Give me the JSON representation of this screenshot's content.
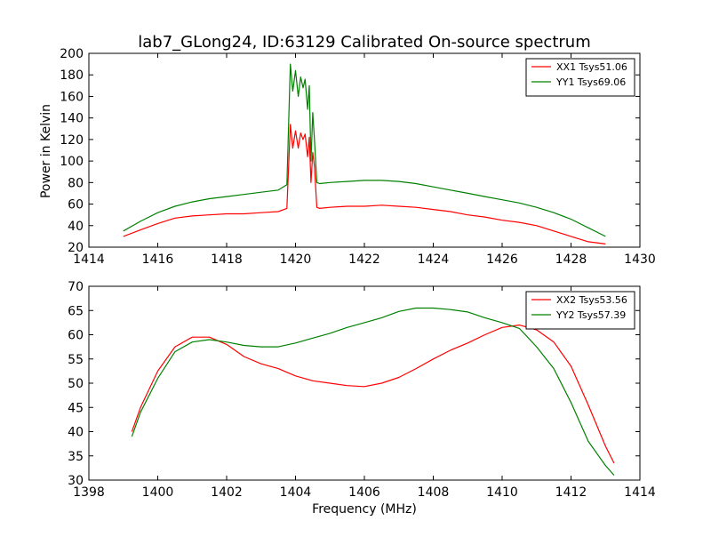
{
  "figure": {
    "title": "lab7_GLong24, ID:63129 Calibrated On-source spectrum",
    "ylabel": "Power in Kelvin",
    "xlabel": "Frequency (MHz)"
  },
  "chart_data": [
    {
      "type": "line",
      "title": "lab7_GLong24, ID:63129 Calibrated On-source spectrum",
      "xlabel": "",
      "ylabel": "Power in Kelvin",
      "xlim": [
        1414,
        1430
      ],
      "ylim": [
        20,
        200
      ],
      "xticks": [
        1414,
        1416,
        1418,
        1420,
        1422,
        1424,
        1426,
        1428,
        1430
      ],
      "yticks": [
        20,
        40,
        60,
        80,
        100,
        120,
        140,
        160,
        180,
        200
      ],
      "legend": "top-right",
      "grid": false,
      "series": [
        {
          "name": "XX1 Tsys51.06",
          "color": "#ff0000",
          "x": [
            1415.0,
            1415.5,
            1416.0,
            1416.5,
            1417.0,
            1417.5,
            1418.0,
            1418.5,
            1419.0,
            1419.5,
            1419.75,
            1419.85,
            1419.92,
            1420.0,
            1420.08,
            1420.15,
            1420.22,
            1420.28,
            1420.35,
            1420.4,
            1420.45,
            1420.5,
            1420.55,
            1420.62,
            1420.7,
            1421.0,
            1421.5,
            1422.0,
            1422.5,
            1423.0,
            1423.5,
            1424.0,
            1424.5,
            1425.0,
            1425.5,
            1426.0,
            1426.5,
            1427.0,
            1427.5,
            1428.0,
            1428.5,
            1429.0
          ],
          "y": [
            30,
            36,
            42,
            47,
            49,
            50,
            51,
            51,
            52,
            53,
            56,
            134,
            112,
            128,
            112,
            126,
            120,
            125,
            104,
            122,
            80,
            108,
            95,
            57,
            56,
            57,
            58,
            58,
            59,
            58,
            57,
            55,
            53,
            50,
            48,
            45,
            43,
            40,
            35,
            30,
            25,
            23
          ]
        },
        {
          "name": "YY1 Tsys69.06",
          "color": "#008000",
          "x": [
            1415.0,
            1415.5,
            1416.0,
            1416.5,
            1417.0,
            1417.5,
            1418.0,
            1418.5,
            1419.0,
            1419.5,
            1419.75,
            1419.85,
            1419.92,
            1420.0,
            1420.08,
            1420.15,
            1420.22,
            1420.28,
            1420.35,
            1420.4,
            1420.45,
            1420.5,
            1420.55,
            1420.62,
            1420.7,
            1421.0,
            1421.5,
            1422.0,
            1422.5,
            1423.0,
            1423.5,
            1424.0,
            1424.5,
            1425.0,
            1425.5,
            1426.0,
            1426.5,
            1427.0,
            1427.5,
            1428.0,
            1428.5,
            1429.0
          ],
          "y": [
            35,
            44,
            52,
            58,
            62,
            65,
            67,
            69,
            71,
            73,
            78,
            190,
            165,
            184,
            160,
            178,
            168,
            176,
            148,
            170,
            100,
            145,
            120,
            80,
            79,
            80,
            81,
            82,
            82,
            81,
            79,
            76,
            73,
            70,
            67,
            64,
            61,
            57,
            52,
            46,
            38,
            30
          ]
        }
      ]
    },
    {
      "type": "line",
      "title": "",
      "xlabel": "Frequency (MHz)",
      "ylabel": "",
      "xlim": [
        1398,
        1414
      ],
      "ylim": [
        30,
        70
      ],
      "xticks": [
        1398,
        1400,
        1402,
        1404,
        1406,
        1408,
        1410,
        1412,
        1414
      ],
      "yticks": [
        30,
        35,
        40,
        45,
        50,
        55,
        60,
        65,
        70
      ],
      "legend": "top-right",
      "grid": false,
      "series": [
        {
          "name": "XX2 Tsys53.56",
          "color": "#ff0000",
          "x": [
            1399.25,
            1399.5,
            1400.0,
            1400.5,
            1401.0,
            1401.5,
            1402.0,
            1402.5,
            1403.0,
            1403.5,
            1404.0,
            1404.5,
            1405.0,
            1405.5,
            1406.0,
            1406.5,
            1407.0,
            1407.5,
            1408.0,
            1408.5,
            1409.0,
            1409.5,
            1410.0,
            1410.5,
            1411.0,
            1411.5,
            1412.0,
            1412.5,
            1413.0,
            1413.25
          ],
          "y": [
            40,
            45,
            52.5,
            57.5,
            59.5,
            59.5,
            58,
            55.5,
            54,
            53,
            51.5,
            50.5,
            50,
            49.5,
            49.3,
            50,
            51.2,
            53,
            55,
            56.8,
            58.3,
            60,
            61.5,
            62,
            61,
            58.5,
            53.5,
            45.5,
            37,
            33.5
          ]
        },
        {
          "name": "YY2 Tsys57.39",
          "color": "#008000",
          "x": [
            1399.25,
            1399.5,
            1400.0,
            1400.5,
            1401.0,
            1401.5,
            1402.0,
            1402.5,
            1403.0,
            1403.5,
            1404.0,
            1404.5,
            1405.0,
            1405.5,
            1406.0,
            1406.5,
            1407.0,
            1407.5,
            1408.0,
            1408.5,
            1409.0,
            1409.5,
            1410.0,
            1410.5,
            1411.0,
            1411.5,
            1412.0,
            1412.5,
            1413.0,
            1413.25
          ],
          "y": [
            39,
            44,
            51,
            56.5,
            58.5,
            59,
            58.5,
            57.8,
            57.5,
            57.5,
            58.3,
            59.3,
            60.3,
            61.5,
            62.5,
            63.5,
            64.8,
            65.5,
            65.5,
            65.2,
            64.7,
            63.5,
            62.5,
            61.3,
            57.5,
            53,
            46,
            38,
            33,
            31
          ]
        }
      ]
    }
  ]
}
